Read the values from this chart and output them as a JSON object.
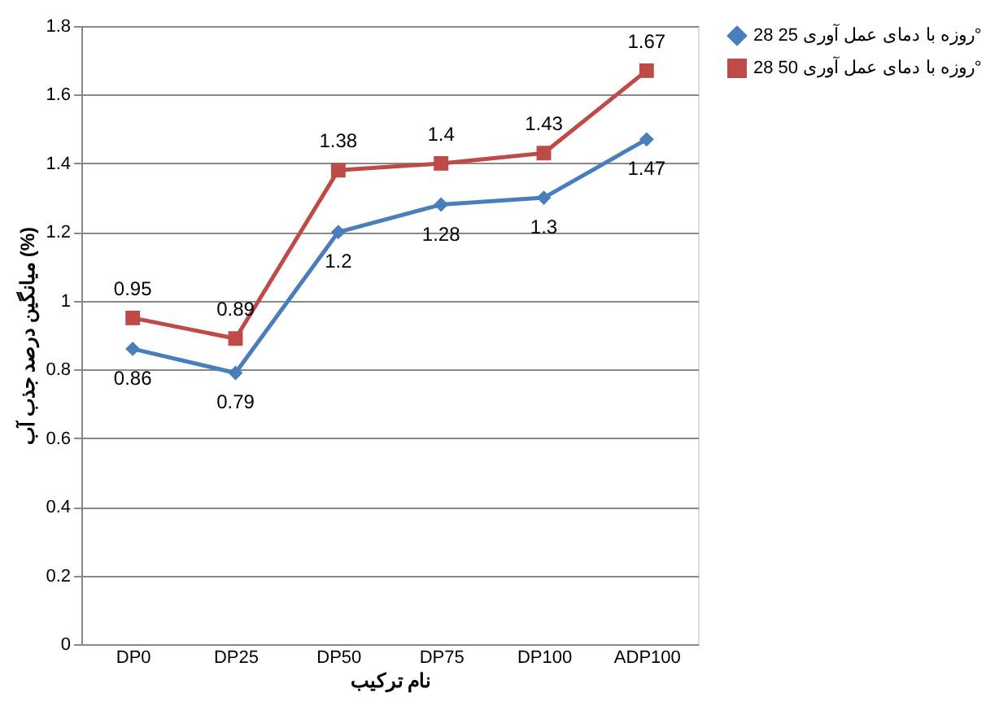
{
  "chart_data": {
    "type": "line",
    "xlabel": "نام ترکیب",
    "ylabel": "میانگین درصد جذب آب (%)",
    "categories": [
      "DP0",
      "DP25",
      "DP50",
      "DP75",
      "DP100",
      "ADP100"
    ],
    "series": [
      {
        "name": "28 روزه با دمای عمل آوری 25°",
        "color": "#4a7ebb",
        "marker": "diamond",
        "values": [
          0.86,
          0.79,
          1.2,
          1.28,
          1.3,
          1.47
        ]
      },
      {
        "name": "28 روزه با دمای عمل آوری 50°",
        "color": "#be4b48",
        "marker": "square",
        "values": [
          0.95,
          0.89,
          1.38,
          1.4,
          1.43,
          1.67
        ]
      }
    ],
    "ylim": [
      0,
      1.8
    ],
    "yticks": [
      0,
      0.2,
      0.4,
      0.6,
      0.8,
      1,
      1.2,
      1.4,
      1.6,
      1.8
    ],
    "grid": "y",
    "legend": "right",
    "data_labels": true,
    "line_style": "solid"
  }
}
